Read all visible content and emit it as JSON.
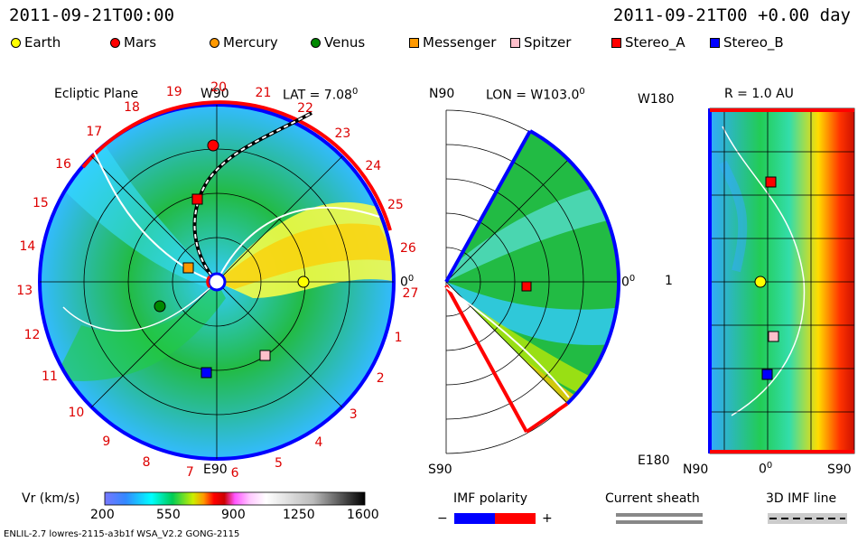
{
  "header": {
    "left_timestamp": "2011-09-21T00:00",
    "right_timestamp": "2011-09-21T00 +0.00 day"
  },
  "legend": [
    {
      "label": "Earth",
      "color": "#ffff00",
      "shape": "circle"
    },
    {
      "label": "Mars",
      "color": "#ff0000",
      "shape": "circle"
    },
    {
      "label": "Mercury",
      "color": "#ff9900",
      "shape": "circle"
    },
    {
      "label": "Venus",
      "color": "#008800",
      "shape": "circle"
    },
    {
      "label": "Messenger",
      "color": "#ff9900",
      "shape": "square"
    },
    {
      "label": "Spitzer",
      "color": "#ffc0cb",
      "shape": "square"
    },
    {
      "label": "Stereo_A",
      "color": "#ff0000",
      "shape": "square"
    },
    {
      "label": "Stereo_B",
      "color": "#0000ff",
      "shape": "square"
    }
  ],
  "panels": {
    "ecliptic": {
      "title": "Ecliptic Plane",
      "top": "W90",
      "lat_label": "LAT = 7.08",
      "degree_sup": "0",
      "right": "0",
      "bottom": "E90",
      "carrington": [
        "19",
        "20",
        "21",
        "22",
        "23",
        "24",
        "25",
        "26",
        "27",
        "1",
        "2",
        "3",
        "4",
        "5",
        "6",
        "7",
        "8",
        "9",
        "10",
        "11",
        "12",
        "13",
        "14",
        "15",
        "16",
        "17",
        "18"
      ]
    },
    "meridional": {
      "top_left": "N90",
      "lon_label": "LON = W103.0",
      "degree_sup": "0",
      "right": "0",
      "bottom_left": "S90"
    },
    "radial": {
      "title": "R = 1.0 AU",
      "top_left": "W180",
      "mid_left": "1",
      "bottom_left": "E180",
      "bottom_n": "N90",
      "bottom_mid": "0",
      "bottom_s": "S90"
    }
  },
  "colorbar": {
    "label": "Vr (km/s)",
    "ticks": [
      "200",
      "550",
      "900",
      "1250",
      "1600"
    ]
  },
  "imf_polarity": {
    "label": "IMF polarity",
    "minus": "−",
    "plus": "+",
    "colors": [
      "#0000ff",
      "#ff0000"
    ]
  },
  "current_sheath": {
    "label": "Current sheath"
  },
  "imf_line": {
    "label": "3D IMF line"
  },
  "footer": {
    "text": "ENLIL-2.7 lowres-2115-a3b1f WSA_V2.2 GONG-2115"
  }
}
